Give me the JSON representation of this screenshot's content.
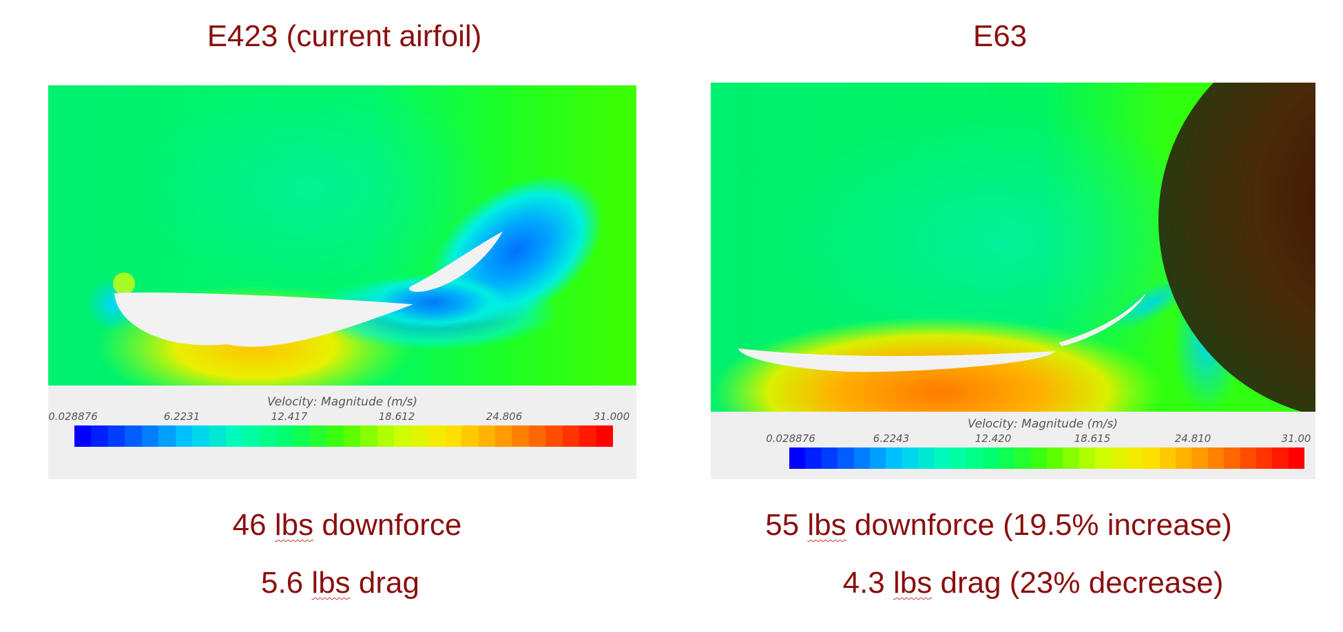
{
  "panels": {
    "left": {
      "title": "E423 (current airfoil)",
      "legend_title": "Velocity: Magnitude (m/s)",
      "ticks": [
        "0.028876",
        "6.2231",
        "12.417",
        "18.612",
        "24.806",
        "31.000"
      ],
      "downforce_value": "46",
      "downforce_unit": "lbs",
      "downforce_rest": "downforce",
      "drag_value": "5.6",
      "drag_unit": "lbs",
      "drag_rest": "drag"
    },
    "right": {
      "title": "E63",
      "legend_title": "Velocity: Magnitude (m/s)",
      "ticks": [
        "0.028876",
        "6.2243",
        "12.420",
        "18.615",
        "24.810",
        "31.00"
      ],
      "downforce_value": "55",
      "downforce_unit": "lbs",
      "downforce_rest": "downforce (19.5% increase)",
      "drag_value": "4.3",
      "drag_unit": "lbs",
      "drag_rest": "drag (23% decrease)"
    }
  },
  "colors": {
    "title_text": "#8b0e0e",
    "field_green": "#00ee66",
    "colormap": [
      "#0000ff",
      "#0060ff",
      "#00c8ff",
      "#00ffb4",
      "#00ff66",
      "#46ff00",
      "#c8ff00",
      "#ffe600",
      "#ffa000",
      "#ff5000",
      "#ff0000"
    ]
  }
}
